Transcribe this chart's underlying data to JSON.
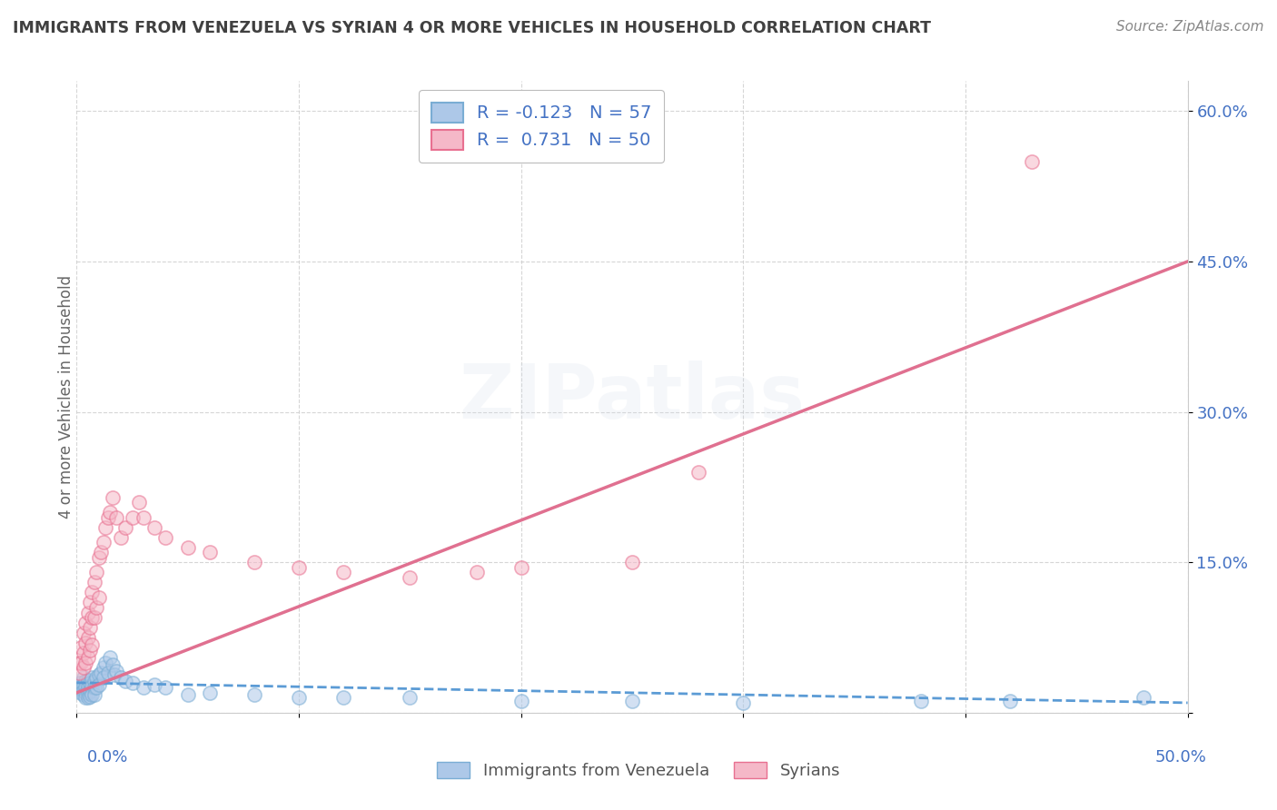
{
  "title": "IMMIGRANTS FROM VENEZUELA VS SYRIAN 4 OR MORE VEHICLES IN HOUSEHOLD CORRELATION CHART",
  "source": "Source: ZipAtlas.com",
  "ylabel": "4 or more Vehicles in Household",
  "ytick_values": [
    0.0,
    0.15,
    0.3,
    0.45,
    0.6
  ],
  "ytick_labels": [
    "",
    "15.0%",
    "30.0%",
    "45.0%",
    "60.0%"
  ],
  "xlim": [
    0.0,
    0.5
  ],
  "ylim": [
    0.0,
    0.63
  ],
  "color_venezuela": "#adc8e8",
  "color_venezuela_edge": "#7aadd4",
  "color_venezuela_line": "#5b9bd5",
  "color_syria": "#f5b8c8",
  "color_syria_edge": "#e87090",
  "color_syria_line": "#e07090",
  "color_axis_label": "#4472c4",
  "color_title": "#404040",
  "color_source": "#888888",
  "color_grid": "#cccccc",
  "color_watermark": "#ccd8e8",
  "background_color": "#ffffff",
  "legend_line1": "R = -0.123   N = 57",
  "legend_line2": "R =  0.731   N = 50",
  "venezuela_x": [
    0.001,
    0.001,
    0.002,
    0.002,
    0.002,
    0.003,
    0.003,
    0.003,
    0.003,
    0.004,
    0.004,
    0.004,
    0.004,
    0.005,
    0.005,
    0.005,
    0.005,
    0.006,
    0.006,
    0.006,
    0.007,
    0.007,
    0.007,
    0.008,
    0.008,
    0.008,
    0.009,
    0.009,
    0.01,
    0.01,
    0.011,
    0.012,
    0.012,
    0.013,
    0.014,
    0.015,
    0.016,
    0.017,
    0.018,
    0.02,
    0.022,
    0.025,
    0.03,
    0.035,
    0.04,
    0.05,
    0.06,
    0.08,
    0.1,
    0.12,
    0.15,
    0.2,
    0.25,
    0.3,
    0.38,
    0.42,
    0.48
  ],
  "venezuela_y": [
    0.03,
    0.025,
    0.03,
    0.025,
    0.02,
    0.035,
    0.028,
    0.022,
    0.018,
    0.032,
    0.026,
    0.02,
    0.015,
    0.033,
    0.026,
    0.02,
    0.015,
    0.03,
    0.022,
    0.016,
    0.035,
    0.026,
    0.018,
    0.032,
    0.025,
    0.018,
    0.035,
    0.025,
    0.038,
    0.028,
    0.04,
    0.045,
    0.035,
    0.05,
    0.04,
    0.055,
    0.048,
    0.038,
    0.042,
    0.035,
    0.032,
    0.03,
    0.025,
    0.028,
    0.025,
    0.018,
    0.02,
    0.018,
    0.015,
    0.015,
    0.015,
    0.012,
    0.012,
    0.01,
    0.012,
    0.012,
    0.015
  ],
  "syria_x": [
    0.001,
    0.001,
    0.002,
    0.002,
    0.003,
    0.003,
    0.003,
    0.004,
    0.004,
    0.004,
    0.005,
    0.005,
    0.005,
    0.006,
    0.006,
    0.006,
    0.007,
    0.007,
    0.007,
    0.008,
    0.008,
    0.009,
    0.009,
    0.01,
    0.01,
    0.011,
    0.012,
    0.013,
    0.014,
    0.015,
    0.016,
    0.018,
    0.02,
    0.022,
    0.025,
    0.028,
    0.03,
    0.035,
    0.04,
    0.05,
    0.06,
    0.08,
    0.1,
    0.12,
    0.15,
    0.18,
    0.2,
    0.25,
    0.43,
    0.28
  ],
  "syria_y": [
    0.05,
    0.04,
    0.065,
    0.05,
    0.08,
    0.06,
    0.045,
    0.09,
    0.07,
    0.05,
    0.1,
    0.075,
    0.055,
    0.11,
    0.085,
    0.062,
    0.12,
    0.095,
    0.068,
    0.13,
    0.095,
    0.14,
    0.105,
    0.155,
    0.115,
    0.16,
    0.17,
    0.185,
    0.195,
    0.2,
    0.215,
    0.195,
    0.175,
    0.185,
    0.195,
    0.21,
    0.195,
    0.185,
    0.175,
    0.165,
    0.16,
    0.15,
    0.145,
    0.14,
    0.135,
    0.14,
    0.145,
    0.15,
    0.55,
    0.24
  ],
  "dot_size": 120,
  "dot_alpha": 0.55,
  "watermark_text": "ZIPatlas",
  "watermark_fontsize": 60,
  "watermark_alpha": 0.18
}
